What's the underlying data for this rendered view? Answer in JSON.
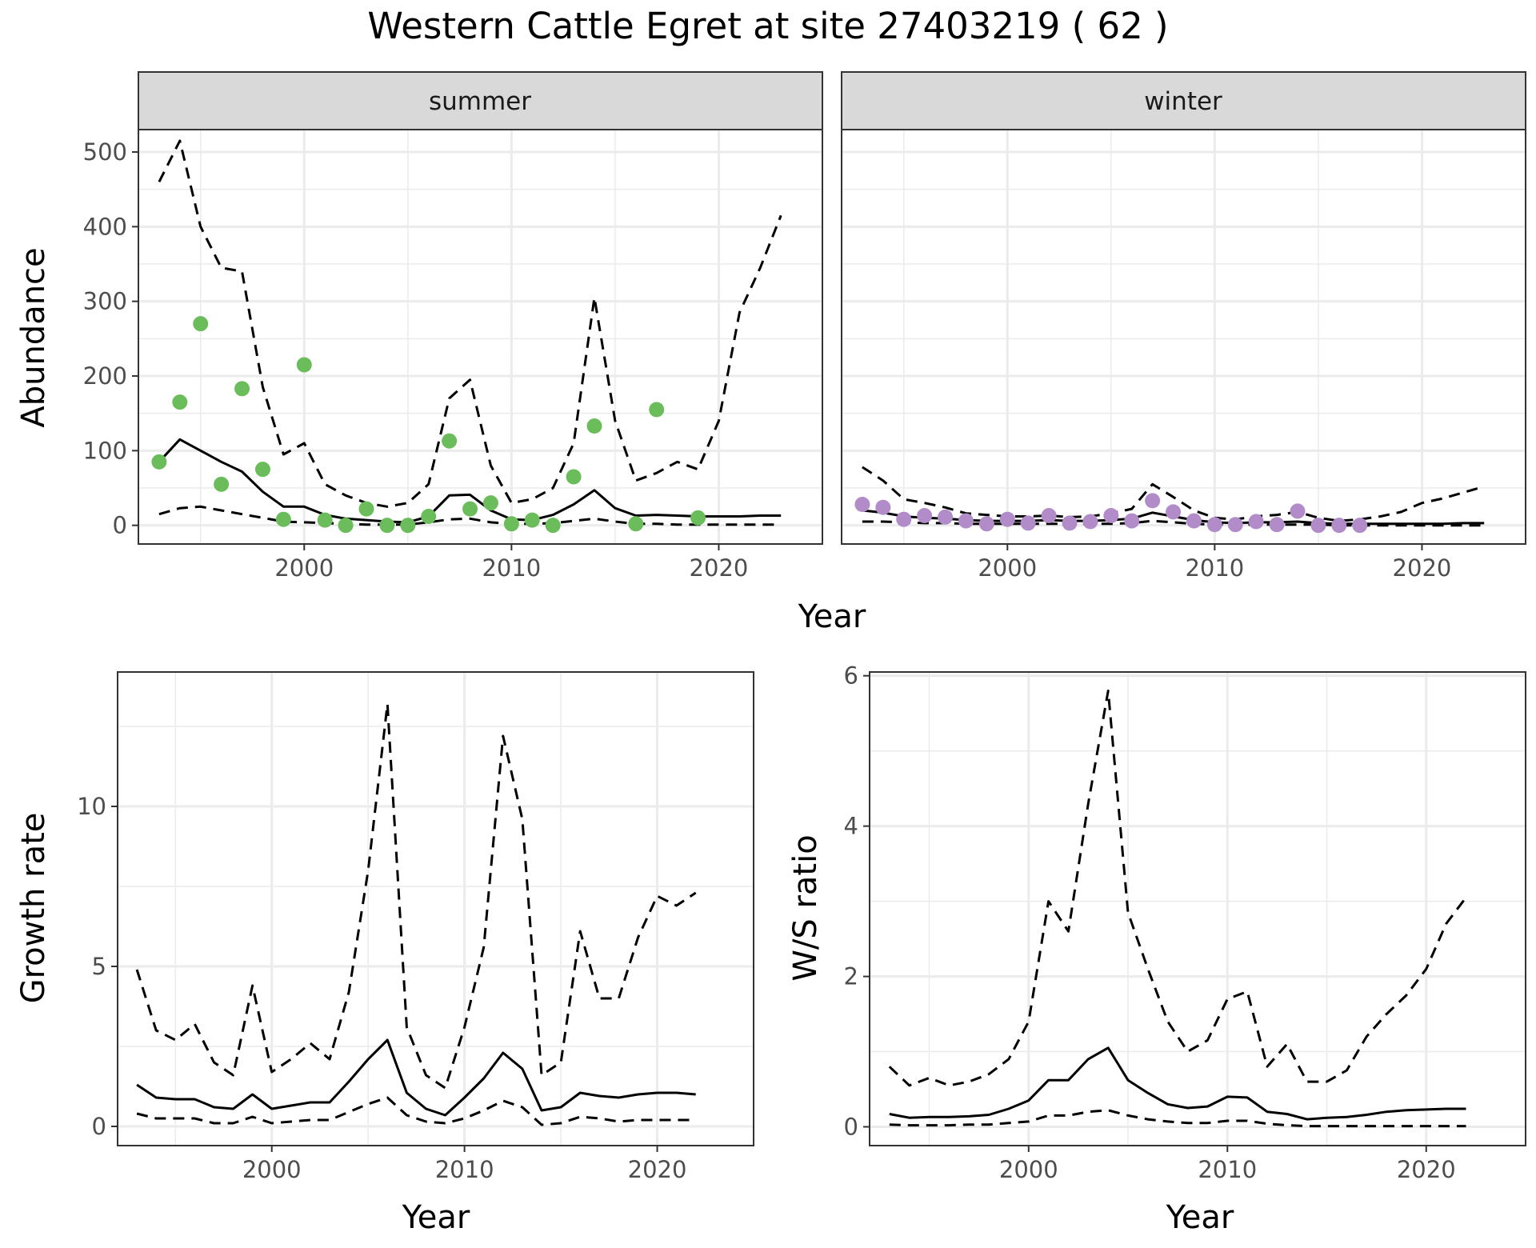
{
  "title": "Western Cattle Egret at site 27403219 ( 62 )",
  "colors": {
    "summer_points": "#6bbd5b",
    "winter_points": "#b18cc9",
    "lines": "#000000",
    "panel_border": "#333333",
    "strip_fill": "#d9d9d9",
    "grid": "#ebebeb"
  },
  "chart_data": [
    {
      "type": "line",
      "panel": "summer",
      "xlabel": "Year",
      "ylabel": "Abundance",
      "xlim": [
        1992,
        2025
      ],
      "ylim": [
        -25,
        530
      ],
      "xticks": [
        2000,
        2010,
        2020
      ],
      "yticks": [
        0,
        100,
        200,
        300,
        400,
        500
      ],
      "grid": true,
      "observed": {
        "x": [
          1993,
          1994,
          1995,
          1996,
          1997,
          1998,
          1999,
          2000,
          2001,
          2002,
          2003,
          2004,
          2005,
          2006,
          2007,
          2008,
          2009,
          2010,
          2011,
          2012,
          2013,
          2014,
          2016,
          2017,
          2019
        ],
        "y": [
          85,
          165,
          270,
          55,
          183,
          75,
          8,
          215,
          7,
          0,
          22,
          0,
          0,
          12,
          113,
          22,
          30,
          2,
          7,
          0,
          65,
          133,
          2,
          155,
          10
        ]
      },
      "series": [
        {
          "role": "estimate",
          "x": [
            1993,
            1994,
            1995,
            1996,
            1997,
            1998,
            1999,
            2000,
            2001,
            2002,
            2003,
            2004,
            2005,
            2006,
            2007,
            2008,
            2009,
            2010,
            2011,
            2012,
            2013,
            2014,
            2015,
            2016,
            2017,
            2018,
            2019,
            2020,
            2021,
            2022,
            2023
          ],
          "y": [
            85,
            115,
            100,
            85,
            72,
            45,
            25,
            25,
            14,
            9,
            7,
            5,
            4,
            12,
            40,
            41,
            20,
            8,
            7,
            14,
            28,
            47,
            23,
            13,
            14,
            13,
            12,
            12,
            12,
            13,
            13
          ]
        },
        {
          "role": "upper",
          "x": [
            1993,
            1994,
            1995,
            1996,
            1997,
            1998,
            1999,
            2000,
            2001,
            2002,
            2003,
            2004,
            2005,
            2006,
            2007,
            2008,
            2009,
            2010,
            2011,
            2012,
            2013,
            2014,
            2015,
            2016,
            2017,
            2018,
            2019,
            2020,
            2021,
            2022,
            2023
          ],
          "y": [
            460,
            515,
            400,
            345,
            340,
            185,
            95,
            110,
            55,
            40,
            30,
            25,
            30,
            55,
            170,
            195,
            80,
            30,
            35,
            50,
            110,
            305,
            140,
            60,
            70,
            85,
            75,
            140,
            285,
            345,
            415
          ]
        },
        {
          "role": "lower",
          "x": [
            1993,
            1994,
            1995,
            1996,
            1997,
            1998,
            1999,
            2000,
            2001,
            2002,
            2003,
            2004,
            2005,
            2006,
            2007,
            2008,
            2009,
            2010,
            2011,
            2012,
            2013,
            2014,
            2015,
            2016,
            2017,
            2018,
            2019,
            2020,
            2021,
            2022,
            2023
          ],
          "y": [
            15,
            23,
            25,
            20,
            15,
            10,
            5,
            4,
            3,
            2,
            1,
            1,
            1,
            4,
            8,
            9,
            4,
            2,
            2,
            3,
            6,
            9,
            5,
            2,
            2,
            1,
            1,
            1,
            1,
            1,
            1
          ]
        }
      ]
    },
    {
      "type": "line",
      "panel": "winter",
      "xlabel": "Year",
      "xlim": [
        1992,
        2025
      ],
      "ylim": [
        -25,
        530
      ],
      "xticks": [
        2000,
        2010,
        2020
      ],
      "grid": true,
      "observed": {
        "x": [
          1993,
          1994,
          1995,
          1996,
          1997,
          1998,
          1999,
          2000,
          2001,
          2002,
          2003,
          2004,
          2005,
          2006,
          2007,
          2008,
          2009,
          2010,
          2011,
          2012,
          2013,
          2014,
          2015,
          2016,
          2017
        ],
        "y": [
          28,
          24,
          8,
          13,
          11,
          6,
          2,
          8,
          3,
          13,
          3,
          5,
          13,
          6,
          33,
          18,
          6,
          1,
          1,
          5,
          1,
          19,
          0,
          0,
          0
        ]
      },
      "series": [
        {
          "role": "estimate",
          "x": [
            1993,
            1994,
            1995,
            1996,
            1997,
            1998,
            1999,
            2000,
            2001,
            2002,
            2003,
            2004,
            2005,
            2006,
            2007,
            2008,
            2009,
            2010,
            2011,
            2012,
            2013,
            2014,
            2015,
            2016,
            2017,
            2018,
            2019,
            2020,
            2021,
            2022,
            2023
          ],
          "y": [
            20,
            17,
            12,
            10,
            9,
            7,
            6,
            6,
            6,
            7,
            6,
            6,
            7,
            9,
            17,
            12,
            7,
            4,
            3,
            4,
            4,
            5,
            3,
            2,
            2,
            2,
            2,
            2,
            2,
            3,
            3
          ]
        },
        {
          "role": "upper",
          "x": [
            1993,
            1994,
            1995,
            1996,
            1997,
            1998,
            1999,
            2000,
            2001,
            2002,
            2003,
            2004,
            2005,
            2006,
            2007,
            2008,
            2009,
            2010,
            2011,
            2012,
            2013,
            2014,
            2015,
            2016,
            2017,
            2018,
            2019,
            2020,
            2021,
            2022,
            2023
          ],
          "y": [
            78,
            60,
            35,
            30,
            24,
            16,
            14,
            12,
            12,
            13,
            11,
            12,
            16,
            22,
            55,
            38,
            20,
            10,
            8,
            12,
            14,
            18,
            10,
            6,
            8,
            12,
            18,
            30,
            36,
            44,
            52
          ]
        },
        {
          "role": "lower",
          "x": [
            1993,
            1994,
            1995,
            1996,
            1997,
            1998,
            1999,
            2000,
            2001,
            2002,
            2003,
            2004,
            2005,
            2006,
            2007,
            2008,
            2009,
            2010,
            2011,
            2012,
            2013,
            2014,
            2015,
            2016,
            2017,
            2018,
            2019,
            2020,
            2021,
            2022,
            2023
          ],
          "y": [
            5,
            5,
            4,
            3,
            3,
            2,
            2,
            2,
            2,
            2,
            2,
            2,
            2,
            3,
            6,
            4,
            2,
            1,
            1,
            1,
            1,
            1,
            1,
            0,
            0,
            0,
            0,
            0,
            0,
            0,
            0
          ]
        }
      ]
    },
    {
      "type": "line",
      "panel": "growth",
      "xlabel": "Year",
      "ylabel": "Growth rate",
      "xlim": [
        1992,
        2025
      ],
      "ylim": [
        -0.6,
        14.2
      ],
      "xticks": [
        2000,
        2010,
        2020
      ],
      "yticks": [
        0,
        5,
        10
      ],
      "grid": true,
      "series": [
        {
          "role": "estimate",
          "x": [
            1993,
            1994,
            1995,
            1996,
            1997,
            1998,
            1999,
            2000,
            2001,
            2002,
            2003,
            2004,
            2005,
            2006,
            2007,
            2008,
            2009,
            2010,
            2011,
            2012,
            2013,
            2014,
            2015,
            2016,
            2017,
            2018,
            2019,
            2020,
            2021,
            2022
          ],
          "y": [
            1.3,
            0.9,
            0.85,
            0.85,
            0.6,
            0.55,
            1.0,
            0.55,
            0.65,
            0.75,
            0.75,
            1.4,
            2.1,
            2.7,
            1.05,
            0.55,
            0.35,
            0.9,
            1.5,
            2.3,
            1.8,
            0.5,
            0.6,
            1.05,
            0.95,
            0.9,
            1.0,
            1.05,
            1.05,
            1.0
          ]
        },
        {
          "role": "upper",
          "x": [
            1993,
            1994,
            1995,
            1996,
            1997,
            1998,
            1999,
            2000,
            2001,
            2002,
            2003,
            2004,
            2005,
            2006,
            2007,
            2008,
            2009,
            2010,
            2011,
            2012,
            2013,
            2014,
            2015,
            2016,
            2017,
            2018,
            2019,
            2020,
            2021,
            2022
          ],
          "y": [
            4.9,
            3.0,
            2.7,
            3.2,
            2.0,
            1.6,
            4.4,
            1.7,
            2.1,
            2.6,
            2.1,
            4.2,
            8.0,
            13.2,
            3.1,
            1.6,
            1.2,
            3.1,
            5.6,
            12.2,
            9.6,
            1.6,
            2.0,
            6.1,
            4.0,
            4.0,
            5.9,
            7.2,
            6.9,
            7.3
          ]
        },
        {
          "role": "lower",
          "x": [
            1993,
            1994,
            1995,
            1996,
            1997,
            1998,
            1999,
            2000,
            2001,
            2002,
            2003,
            2004,
            2005,
            2006,
            2007,
            2008,
            2009,
            2010,
            2011,
            2012,
            2013,
            2014,
            2015,
            2016,
            2017,
            2018,
            2019,
            2020,
            2021,
            2022
          ],
          "y": [
            0.4,
            0.25,
            0.25,
            0.25,
            0.1,
            0.1,
            0.3,
            0.1,
            0.15,
            0.2,
            0.2,
            0.45,
            0.7,
            0.9,
            0.35,
            0.15,
            0.1,
            0.25,
            0.5,
            0.8,
            0.6,
            0.05,
            0.1,
            0.3,
            0.25,
            0.15,
            0.2,
            0.2,
            0.2,
            0.2
          ]
        }
      ]
    },
    {
      "type": "line",
      "panel": "ws_ratio",
      "xlabel": "Year",
      "ylabel": "W/S ratio",
      "xlim": [
        1992,
        2025
      ],
      "ylim": [
        -0.25,
        6.05
      ],
      "xticks": [
        2000,
        2010,
        2020
      ],
      "yticks": [
        0,
        2,
        4,
        6
      ],
      "grid": true,
      "series": [
        {
          "role": "estimate",
          "x": [
            1993,
            1994,
            1995,
            1996,
            1997,
            1998,
            1999,
            2000,
            2001,
            2002,
            2003,
            2004,
            2005,
            2006,
            2007,
            2008,
            2009,
            2010,
            2011,
            2012,
            2013,
            2014,
            2015,
            2016,
            2017,
            2018,
            2019,
            2020,
            2021,
            2022
          ],
          "y": [
            0.17,
            0.12,
            0.13,
            0.13,
            0.14,
            0.16,
            0.24,
            0.35,
            0.62,
            0.62,
            0.9,
            1.05,
            0.62,
            0.45,
            0.3,
            0.25,
            0.27,
            0.4,
            0.39,
            0.2,
            0.17,
            0.1,
            0.12,
            0.13,
            0.16,
            0.2,
            0.22,
            0.23,
            0.24,
            0.24
          ]
        },
        {
          "role": "upper",
          "x": [
            1993,
            1994,
            1995,
            1996,
            1997,
            1998,
            1999,
            2000,
            2001,
            2002,
            2003,
            2004,
            2005,
            2006,
            2007,
            2008,
            2009,
            2010,
            2011,
            2012,
            2013,
            2014,
            2015,
            2016,
            2017,
            2018,
            2019,
            2020,
            2021,
            2022
          ],
          "y": [
            0.8,
            0.55,
            0.65,
            0.55,
            0.6,
            0.7,
            0.9,
            1.4,
            3.0,
            2.6,
            4.3,
            5.8,
            2.85,
            2.1,
            1.4,
            1.0,
            1.15,
            1.7,
            1.8,
            0.8,
            1.1,
            0.6,
            0.6,
            0.75,
            1.2,
            1.5,
            1.75,
            2.1,
            2.7,
            3.05
          ]
        },
        {
          "role": "lower",
          "x": [
            1993,
            1994,
            1995,
            1996,
            1997,
            1998,
            1999,
            2000,
            2001,
            2002,
            2003,
            2004,
            2005,
            2006,
            2007,
            2008,
            2009,
            2010,
            2011,
            2012,
            2013,
            2014,
            2015,
            2016,
            2017,
            2018,
            2019,
            2020,
            2021,
            2022
          ],
          "y": [
            0.03,
            0.02,
            0.02,
            0.02,
            0.03,
            0.03,
            0.05,
            0.07,
            0.15,
            0.15,
            0.2,
            0.22,
            0.15,
            0.1,
            0.07,
            0.05,
            0.05,
            0.08,
            0.08,
            0.04,
            0.02,
            0.01,
            0.01,
            0.01,
            0.01,
            0.01,
            0.01,
            0.01,
            0.01,
            0.01
          ]
        }
      ]
    }
  ],
  "facet_labels": {
    "summer": "summer",
    "winter": "winter"
  },
  "shared_xlabel": "Year"
}
